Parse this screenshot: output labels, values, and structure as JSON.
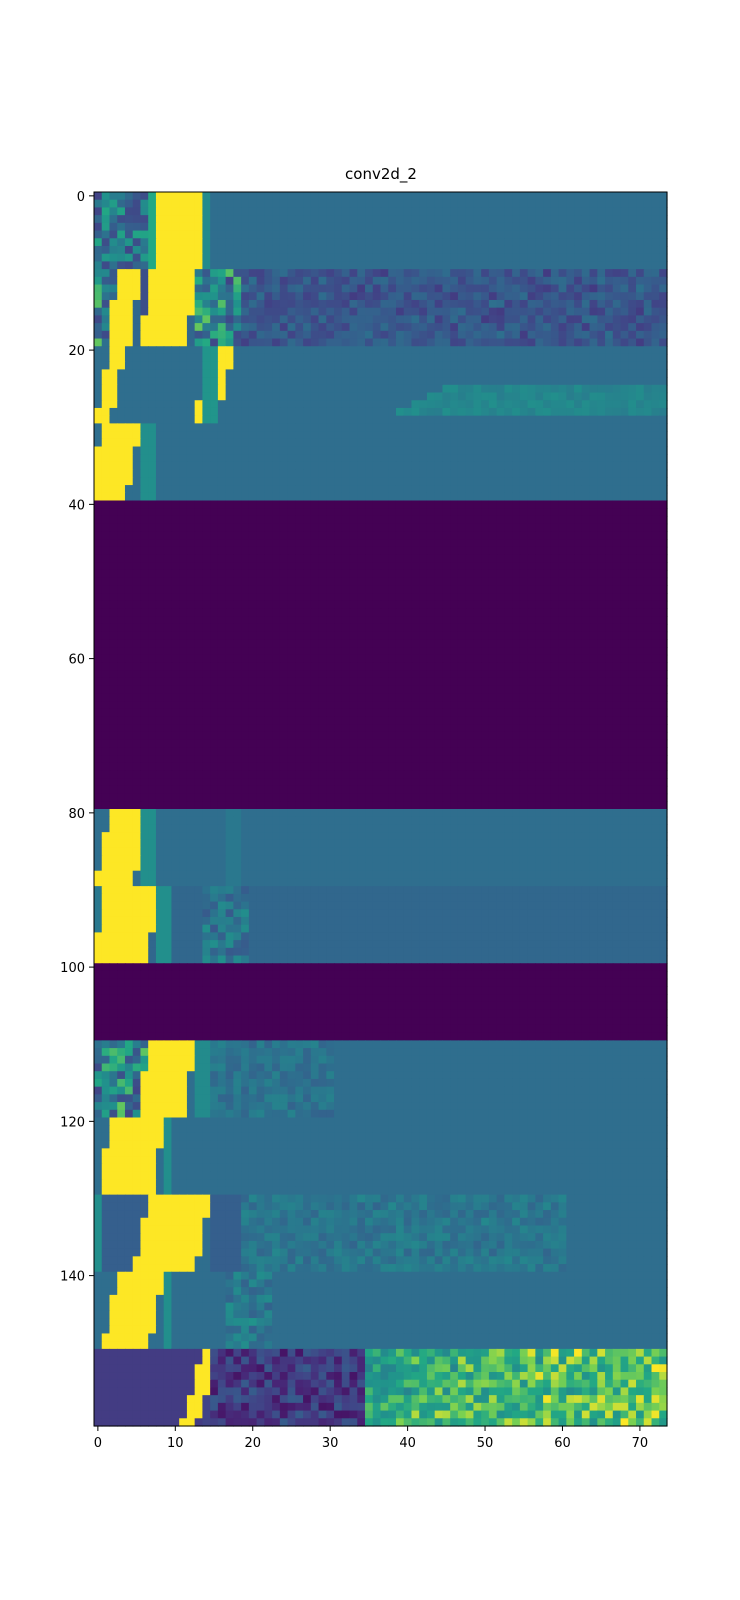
{
  "chart_data": {
    "type": "heatmap",
    "title": "conv2d_2",
    "xlabel": "",
    "ylabel": "",
    "colormap": "viridis",
    "xlim": [
      -0.5,
      73.5
    ],
    "ylim": [
      159.5,
      -0.5
    ],
    "x_ticks": [
      0,
      10,
      20,
      30,
      40,
      50,
      60,
      70
    ],
    "y_ticks": [
      0,
      20,
      40,
      60,
      80,
      100,
      120,
      140
    ],
    "grid": false,
    "legend": "none",
    "colors": {
      "background_mid": "#277f8e",
      "inactive": "#440154",
      "high": "#fde725",
      "upper_mid": "#35b779",
      "low": "#3b528b",
      "lower_low": "#443983"
    },
    "blocks": [
      {
        "rows": [
          0,
          9
        ],
        "base": 0.45,
        "bands": [
          {
            "start": 0,
            "end": 6,
            "value": 0.5,
            "noise": 0.25
          },
          {
            "start": 7,
            "end": 8,
            "value": 0.75
          },
          {
            "start": 8,
            "end": 13,
            "value": 1.0,
            "slope": -0.0
          },
          {
            "start": 14,
            "end": 14,
            "value": 0.6
          }
        ],
        "shift": 0
      },
      {
        "rows": [
          10,
          19
        ],
        "base": 0.42,
        "bands": [
          {
            "start": 0,
            "end": 3,
            "value": 0.55,
            "noise": 0.3
          },
          {
            "start": 3,
            "end": 5,
            "value": 1.0,
            "slope": -0.15
          },
          {
            "start": 6,
            "end": 6,
            "value": 0.3
          },
          {
            "start": 7,
            "end": 12,
            "value": 1.0,
            "slope": -0.1
          },
          {
            "start": 13,
            "end": 18,
            "value": 0.55,
            "noise": 0.3
          },
          {
            "start": 19,
            "end": 73,
            "value": 0.35,
            "noise": 0.1,
            "fade": 0.06
          }
        ],
        "shift": 0
      },
      {
        "rows": [
          20,
          29
        ],
        "base": 0.45,
        "bands": [
          {
            "start": 0,
            "end": 1,
            "value": 0.45
          },
          {
            "start": 2,
            "end": 3,
            "value": 1.0,
            "slope": -0.2
          },
          {
            "start": 15,
            "end": 17,
            "value": 1.0,
            "slope": -0.25
          },
          {
            "start": 14,
            "end": 15,
            "value": 0.65
          }
        ],
        "streak": {
          "start": 45,
          "end": 73,
          "value": 0.62,
          "rows": [
            25,
            28
          ]
        },
        "shift": 0
      },
      {
        "rows": [
          30,
          39
        ],
        "base": 0.45,
        "bands": [
          {
            "start": 0,
            "end": 0,
            "value": 0.45
          },
          {
            "start": 1,
            "end": 5,
            "value": 1.0,
            "slope": -0.2
          },
          {
            "start": 6,
            "end": 7,
            "value": 0.62
          }
        ],
        "shift": 0
      },
      {
        "rows": [
          40,
          79
        ],
        "base": 0.0,
        "bands": [],
        "shift": 0
      },
      {
        "rows": [
          80,
          89
        ],
        "base": 0.45,
        "bands": [
          {
            "start": 2,
            "end": 6,
            "value": 1.0,
            "slope": -0.2
          },
          {
            "start": 6,
            "end": 7,
            "value": 0.62
          },
          {
            "start": 17,
            "end": 18,
            "value": 0.5
          }
        ],
        "shift": 0
      },
      {
        "rows": [
          90,
          99
        ],
        "base": 0.42,
        "bands": [
          {
            "start": 0,
            "end": 1,
            "value": 0.5
          },
          {
            "start": 1,
            "end": 7,
            "value": 1.0,
            "slope": -0.1
          },
          {
            "start": 8,
            "end": 9,
            "value": 0.62
          },
          {
            "start": 14,
            "end": 19,
            "value": 0.48,
            "noise": 0.15
          }
        ],
        "shift": 0
      },
      {
        "rows": [
          100,
          109
        ],
        "base": 0.0,
        "bands": [],
        "shift": 0
      },
      {
        "rows": [
          110,
          119
        ],
        "base": 0.45,
        "bands": [
          {
            "start": 0,
            "end": 7,
            "value": 0.55,
            "noise": 0.3
          },
          {
            "start": 7,
            "end": 12,
            "value": 1.0,
            "slope": -0.15
          },
          {
            "start": 13,
            "end": 14,
            "value": 0.6
          },
          {
            "start": 15,
            "end": 30,
            "value": 0.48,
            "noise": 0.08
          }
        ],
        "shift": 0
      },
      {
        "rows": [
          120,
          129
        ],
        "base": 0.45,
        "bands": [
          {
            "start": 0,
            "end": 2,
            "value": 0.45
          },
          {
            "start": 2,
            "end": 8,
            "value": 1.0,
            "slope": -0.15
          },
          {
            "start": 9,
            "end": 9,
            "value": 0.62
          }
        ],
        "shift": 0
      },
      {
        "rows": [
          130,
          139
        ],
        "base": 0.45,
        "bands": [
          {
            "start": 0,
            "end": 0,
            "value": 0.62
          },
          {
            "start": 1,
            "end": 6,
            "value": 0.38
          },
          {
            "start": 7,
            "end": 14,
            "value": 1.0,
            "slope": -0.2
          },
          {
            "start": 15,
            "end": 18,
            "value": 0.38
          },
          {
            "start": 19,
            "end": 60,
            "value": 0.5,
            "noise": 0.08,
            "fade": 0.02
          }
        ],
        "shift": 0
      },
      {
        "rows": [
          140,
          149
        ],
        "base": 0.45,
        "bands": [
          {
            "start": 0,
            "end": 3,
            "value": 0.45
          },
          {
            "start": 3,
            "end": 8,
            "value": 1.0,
            "slope": -0.2
          },
          {
            "start": 9,
            "end": 9,
            "value": 0.62
          },
          {
            "start": 17,
            "end": 22,
            "value": 0.52,
            "noise": 0.12
          }
        ],
        "shift": 0
      },
      {
        "rows": [
          150,
          159
        ],
        "base": 0.25,
        "bands": [
          {
            "start": 0,
            "end": 13,
            "value": 0.22
          },
          {
            "start": 14,
            "end": 15,
            "value": 1.0,
            "slope": -0.3
          },
          {
            "start": 15,
            "end": 35,
            "value": 0.22,
            "noise": 0.15
          },
          {
            "start": 35,
            "end": 73,
            "value": 0.72,
            "noise": 0.15,
            "rise": 0.12
          }
        ],
        "shift": 0
      }
    ]
  }
}
